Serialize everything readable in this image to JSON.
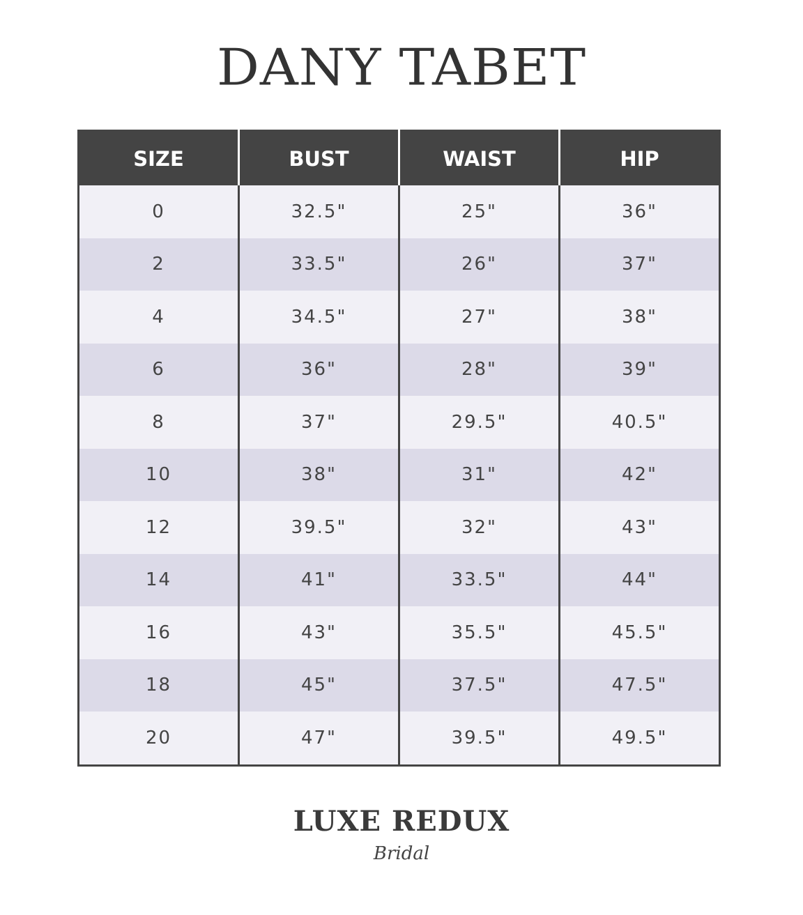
{
  "title": "DANY TABET",
  "table": {
    "headers": [
      "SIZE",
      "BUST",
      "WAIST",
      "HIP"
    ],
    "rows": [
      [
        "0",
        "32.5\"",
        "25\"",
        "36\""
      ],
      [
        "2",
        "33.5\"",
        "26\"",
        "37\""
      ],
      [
        "4",
        "34.5\"",
        "27\"",
        "38\""
      ],
      [
        "6",
        "36\"",
        "28\"",
        "39\""
      ],
      [
        "8",
        "37\"",
        "29.5\"",
        "40.5\""
      ],
      [
        "10",
        "38\"",
        "31\"",
        "42\""
      ],
      [
        "12",
        "39.5\"",
        "32\"",
        "43\""
      ],
      [
        "14",
        "41\"",
        "33.5\"",
        "44\""
      ],
      [
        "16",
        "43\"",
        "35.5\"",
        "45.5\""
      ],
      [
        "18",
        "45\"",
        "37.5\"",
        "47.5\""
      ],
      [
        "20",
        "47\"",
        "39.5\"",
        "49.5\""
      ]
    ]
  },
  "logo": {
    "main": "LUXE REDUX",
    "sub": "Bridal"
  },
  "colors": {
    "header_bg": "#444444",
    "row_light": "#f1f0f6",
    "row_dark": "#dcdae8"
  }
}
